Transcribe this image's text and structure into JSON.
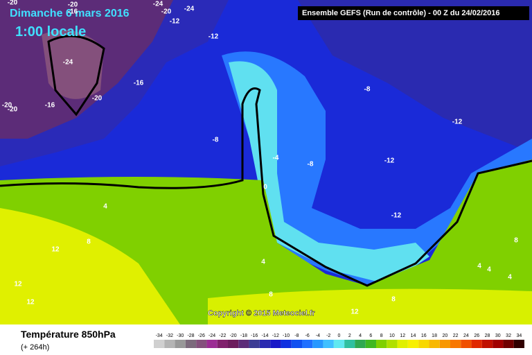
{
  "header": {
    "date": "Dimanche 6 mars 2016",
    "time": "1:00 locale",
    "run": "Ensemble GEFS  (Run de contrôle)  -  00 Z du 24/02/2016"
  },
  "copyright": "Copyright © 2015 Meteociel.fr",
  "footer": {
    "title": "Température 850hPa",
    "lead": "(+ 264h)"
  },
  "contour_labels": [
    -20,
    -20,
    -16,
    -24,
    -20,
    -24,
    -12,
    -12,
    -24,
    -16,
    -20,
    -20,
    -16,
    -20,
    -8,
    -12,
    -8,
    -4,
    -8,
    -12,
    0,
    4,
    -12,
    8,
    12,
    4,
    12,
    4,
    4,
    4,
    8,
    12,
    8,
    8,
    12
  ],
  "scale": {
    "ticks": [
      -34,
      -32,
      -30,
      -28,
      -26,
      -24,
      -22,
      -20,
      -18,
      -16,
      -14,
      -12,
      -10,
      -8,
      -6,
      -4,
      -2,
      0,
      2,
      4,
      6,
      8,
      10,
      12,
      14,
      16,
      18,
      20,
      22,
      24,
      26,
      28,
      30,
      32,
      34
    ],
    "colors": [
      "#d0d0d0",
      "#b4b4b4",
      "#989898",
      "#7c6a7c",
      "#84507c",
      "#9c2c94",
      "#80206c",
      "#6c1c5c",
      "#5c2c78",
      "#3c3c94",
      "#2a2ab0",
      "#1818c8",
      "#1030e0",
      "#1050f0",
      "#2070ff",
      "#2898ff",
      "#40c0ff",
      "#60e8f0",
      "#30c0a0",
      "#30a850",
      "#40b820",
      "#80d000",
      "#b0e000",
      "#e0f000",
      "#f8f000",
      "#f8d800",
      "#f8b800",
      "#f89800",
      "#f87800",
      "#f05000",
      "#e02800",
      "#c01000",
      "#a00000",
      "#700000",
      "#300000"
    ]
  }
}
